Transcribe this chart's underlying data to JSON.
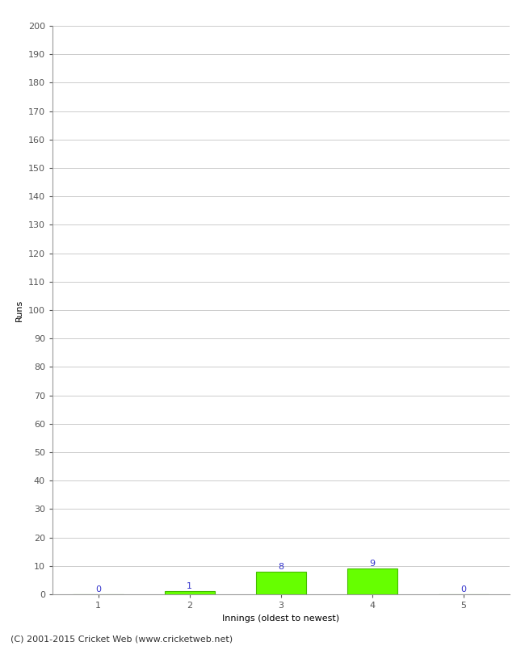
{
  "innings": [
    1,
    2,
    3,
    4,
    5
  ],
  "runs": [
    0,
    1,
    8,
    9,
    0
  ],
  "bar_color": "#66ff00",
  "bar_edge_color": "#44bb00",
  "label_color": "#3333cc",
  "ylabel": "Runs",
  "xlabel": "Innings (oldest to newest)",
  "ylim": [
    0,
    200
  ],
  "yticks": [
    0,
    10,
    20,
    30,
    40,
    50,
    60,
    70,
    80,
    90,
    100,
    110,
    120,
    130,
    140,
    150,
    160,
    170,
    180,
    190,
    200
  ],
  "background_color": "#ffffff",
  "grid_color": "#cccccc",
  "footnote": "(C) 2001-2015 Cricket Web (www.cricketweb.net)",
  "label_fontsize": 8,
  "axis_fontsize": 8,
  "footnote_fontsize": 8,
  "tick_label_fontsize": 8
}
